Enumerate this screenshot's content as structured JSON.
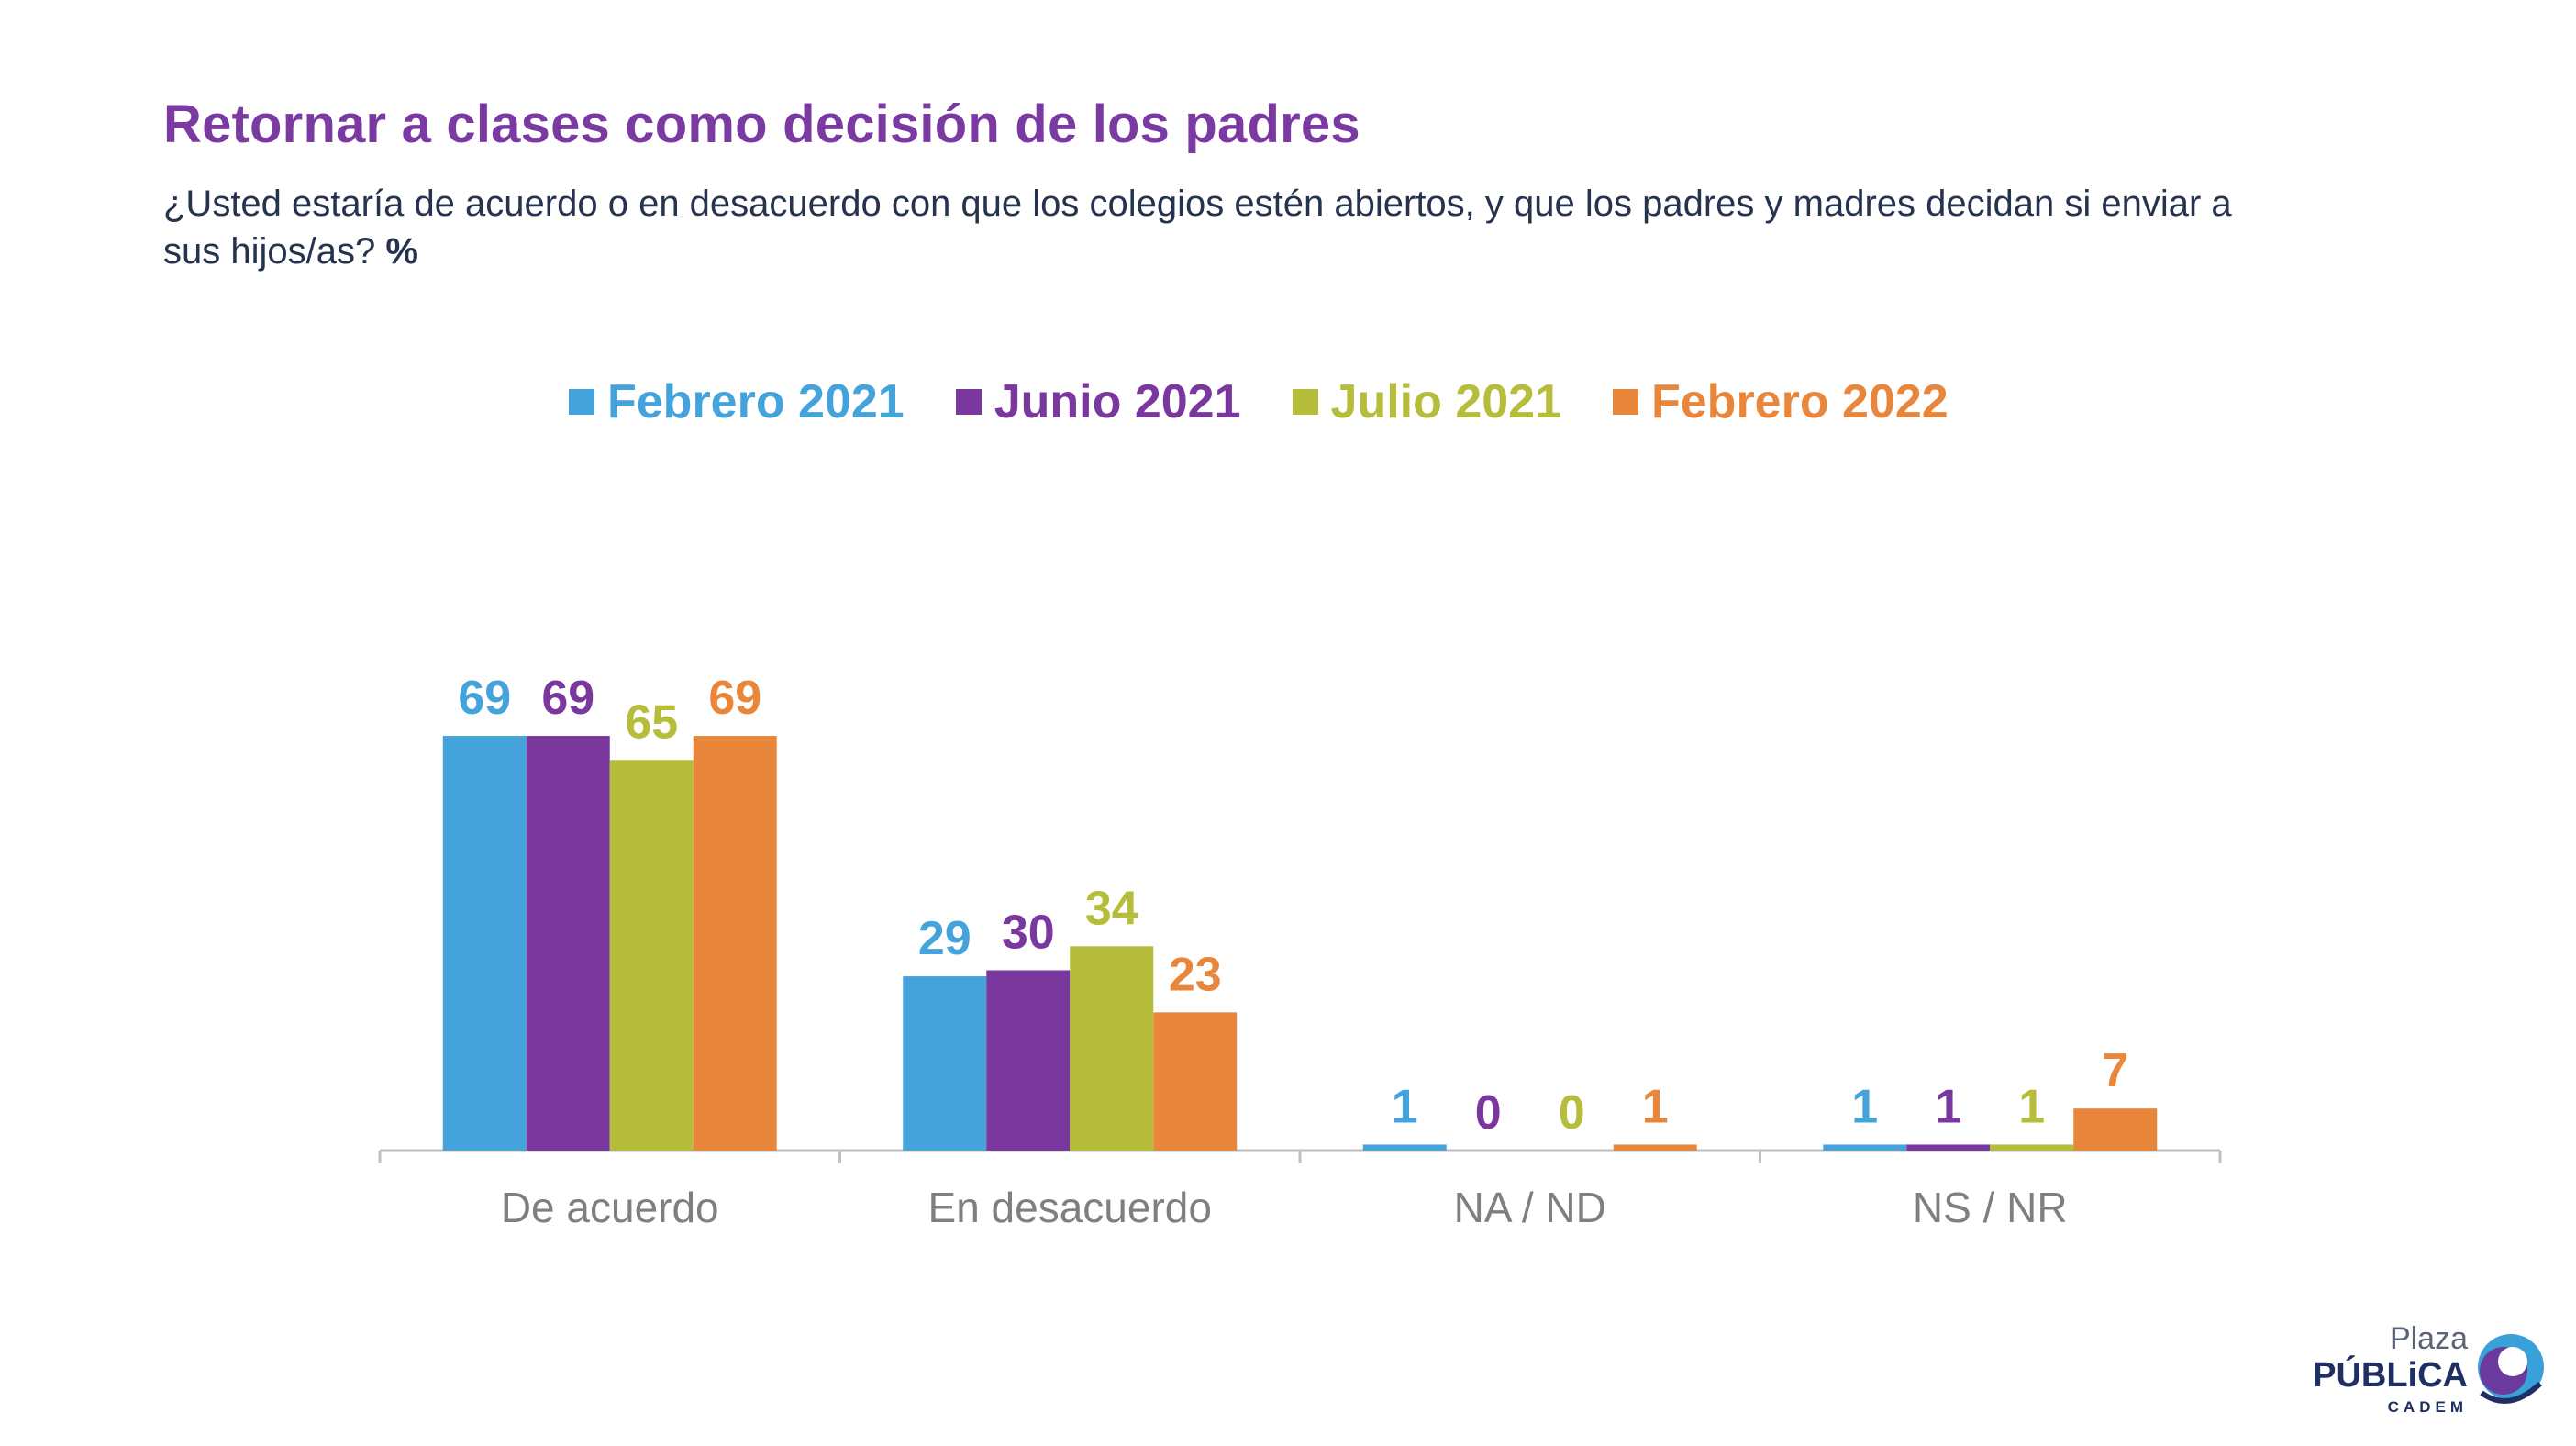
{
  "title": "Retornar a clases como decisión de los padres",
  "subtitle": "¿Usted estaría de acuerdo o en desacuerdo con que los colegios estén abiertos, y que los padres y madres decidan si enviar a sus hijos/as?",
  "subtitle_unit": "%",
  "logo": {
    "line1": "Plaza",
    "line2": "PÚBLiCA",
    "line3": "CADEM"
  },
  "chart_data": {
    "type": "bar",
    "categories": [
      "De acuerdo",
      "En desacuerdo",
      "NA / ND",
      "NS / NR"
    ],
    "series": [
      {
        "name": "Febrero 2021",
        "color": "#45a3dc",
        "values": [
          69,
          29,
          1,
          1
        ]
      },
      {
        "name": "Junio 2021",
        "color": "#7a389f",
        "values": [
          69,
          30,
          0,
          1
        ]
      },
      {
        "name": "Julio 2021",
        "color": "#b5bd3a",
        "values": [
          65,
          34,
          0,
          1
        ]
      },
      {
        "name": "Febrero 2022",
        "color": "#e8873c",
        "values": [
          69,
          23,
          1,
          7
        ]
      }
    ],
    "ylim": [
      0,
      100
    ],
    "grid": false,
    "legend_position": "top",
    "xlabel": "",
    "ylabel": ""
  }
}
